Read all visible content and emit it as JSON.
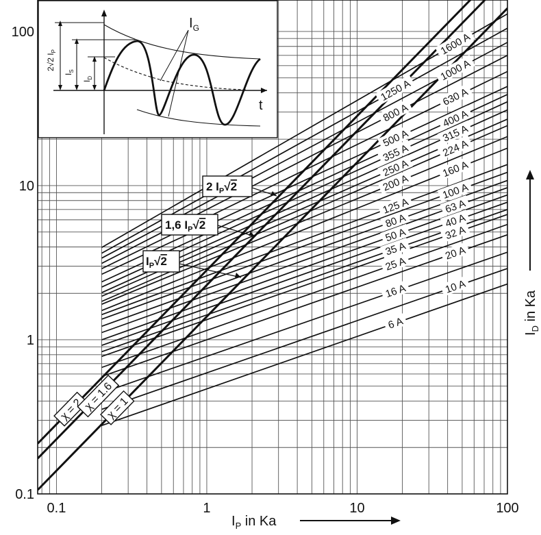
{
  "chart_data": {
    "type": "line",
    "xlabel_main": "I",
    "xlabel_sub": "P",
    "xlabel_rest": " in Ka",
    "ylabel_main": "I",
    "ylabel_sub": "D",
    "ylabel_rest": " in Ka",
    "x_scale": "log",
    "y_scale": "log",
    "xlim": [
      0.075,
      100
    ],
    "ylim": [
      0.1,
      160
    ],
    "grid": true,
    "x_ticks": [
      {
        "value": 0.1,
        "label": "0.1"
      },
      {
        "value": 1,
        "label": "1"
      },
      {
        "value": 10,
        "label": "10"
      },
      {
        "value": 100,
        "label": "100"
      }
    ],
    "y_ticks": [
      {
        "value": 0.1,
        "label": "0.1"
      },
      {
        "value": 1,
        "label": "1"
      },
      {
        "value": 10,
        "label": "10"
      },
      {
        "value": 100,
        "label": "100"
      }
    ],
    "peak_lines": [
      {
        "name": "χ = 2",
        "factor": 2.828
      },
      {
        "name": "χ = 1.6",
        "factor": 2.263
      },
      {
        "name": "χ = 1",
        "factor": 1.414
      }
    ],
    "peak_callouts": [
      {
        "main": "2 I",
        "sub": "P",
        "root": "2"
      },
      {
        "main": "1,6 I",
        "sub": "P",
        "root": "2"
      },
      {
        "main": "I",
        "sub": "P",
        "root": "2"
      }
    ],
    "series": [
      {
        "name": "6 A",
        "points": [
          [
            1,
            0.48
          ],
          [
            100,
            2.3
          ]
        ]
      },
      {
        "name": "10 A",
        "points": [
          [
            1,
            0.61
          ],
          [
            100,
            2.9
          ]
        ]
      },
      {
        "name": "16 A",
        "points": [
          [
            1,
            0.78
          ],
          [
            100,
            3.7
          ]
        ]
      },
      {
        "name": "20 A",
        "points": [
          [
            1,
            1.0
          ],
          [
            100,
            4.8
          ]
        ]
      },
      {
        "name": "25 A",
        "points": [
          [
            1,
            1.15
          ],
          [
            100,
            5.6
          ]
        ]
      },
      {
        "name": "32 A",
        "points": [
          [
            1,
            1.35
          ],
          [
            100,
            6.5
          ]
        ]
      },
      {
        "name": "35 A",
        "points": [
          [
            1,
            1.45
          ],
          [
            100,
            7.0
          ]
        ]
      },
      {
        "name": "40 A",
        "points": [
          [
            1,
            1.6
          ],
          [
            100,
            7.8
          ]
        ]
      },
      {
        "name": "50 A",
        "points": [
          [
            1,
            1.75
          ],
          [
            100,
            8.7
          ]
        ]
      },
      {
        "name": "63 A",
        "points": [
          [
            1,
            1.95
          ],
          [
            100,
            9.7
          ]
        ]
      },
      {
        "name": "80 A",
        "points": [
          [
            1,
            2.15
          ],
          [
            100,
            10.8
          ]
        ]
      },
      {
        "name": "100 A",
        "points": [
          [
            1,
            2.4
          ],
          [
            100,
            12.2
          ]
        ]
      },
      {
        "name": "125 A",
        "points": [
          [
            1,
            2.6
          ],
          [
            100,
            13.7
          ]
        ]
      },
      {
        "name": "160 A",
        "points": [
          [
            1,
            2.9
          ],
          [
            100,
            17.5
          ]
        ]
      },
      {
        "name": "200 A",
        "points": [
          [
            1,
            3.25
          ],
          [
            100,
            20.8
          ]
        ]
      },
      {
        "name": "224 A",
        "points": [
          [
            1,
            3.5
          ],
          [
            100,
            24.5
          ]
        ]
      },
      {
        "name": "250 A",
        "points": [
          [
            1,
            3.8
          ],
          [
            100,
            27.0
          ]
        ]
      },
      {
        "name": "315 A",
        "points": [
          [
            1,
            4.1
          ],
          [
            100,
            31.0
          ]
        ]
      },
      {
        "name": "355 A",
        "points": [
          [
            1,
            4.5
          ],
          [
            100,
            35.0
          ]
        ]
      },
      {
        "name": "400 A",
        "points": [
          [
            1,
            4.9
          ],
          [
            100,
            39.0
          ]
        ]
      },
      {
        "name": "500 A",
        "points": [
          [
            1,
            5.5
          ],
          [
            100,
            44.0
          ]
        ]
      },
      {
        "name": "630 A",
        "points": [
          [
            1,
            6.2
          ],
          [
            100,
            55.0
          ]
        ]
      },
      {
        "name": "800 A",
        "points": [
          [
            1,
            7.0
          ],
          [
            100,
            70.0
          ]
        ]
      },
      {
        "name": "1000 A",
        "points": [
          [
            1,
            7.8
          ],
          [
            100,
            85.0
          ]
        ]
      },
      {
        "name": "1250 A",
        "points": [
          [
            1,
            8.7
          ],
          [
            100,
            105.0
          ]
        ]
      },
      {
        "name": "1600 A",
        "points": [
          [
            1,
            9.8
          ],
          [
            100,
            130.0
          ]
        ]
      }
    ],
    "inset": {
      "time_label": "t",
      "ig_main": "I",
      "ig_sub": "G",
      "is_main": "I",
      "is_sub": "S",
      "id_main": "I",
      "id_sub": "D",
      "ip_prefix": "2√2 I",
      "ip_sub": "P"
    }
  }
}
